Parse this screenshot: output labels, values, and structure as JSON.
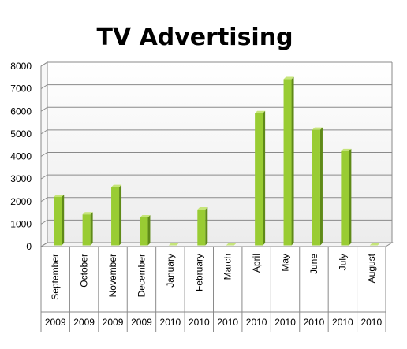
{
  "chart_data": {
    "type": "bar",
    "title": "TV Advertising",
    "categories": [
      "September",
      "October",
      "November",
      "December",
      "January",
      "February",
      "March",
      "April",
      "May",
      "June",
      "July",
      "August"
    ],
    "years": [
      "2009",
      "2009",
      "2009",
      "2009",
      "2010",
      "2010",
      "2010",
      "2010",
      "2010",
      "2010",
      "2010",
      "2010"
    ],
    "values": [
      2150,
      1370,
      2580,
      1240,
      0,
      1590,
      0,
      5860,
      7370,
      5130,
      4180,
      0
    ],
    "ylim": [
      0,
      8000
    ],
    "yticks": [
      0,
      1000,
      2000,
      3000,
      4000,
      5000,
      6000,
      7000,
      8000
    ],
    "xlabel": "",
    "ylabel": "",
    "grid": true,
    "legend": "none",
    "colors": {
      "bar_front": "#99cc33",
      "bar_side": "#5f8a18",
      "bar_top": "#c6e57a",
      "wall_top": "#ffffff",
      "wall_bottom": "#ececec",
      "grid": "#8a8a8a"
    }
  }
}
